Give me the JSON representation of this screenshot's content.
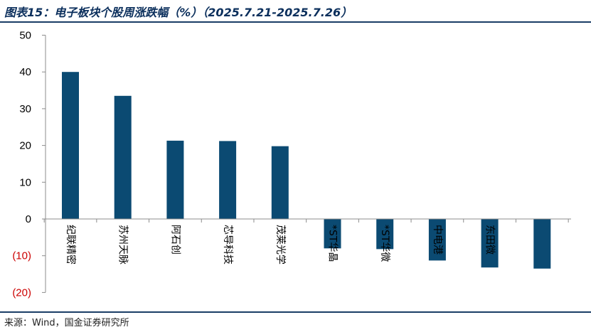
{
  "page": {
    "title": "图表15：电子板块个股周涨跌幅（%）（2025.7.21-2025.7.26）",
    "source": "来源：Wind，国金证券研究所"
  },
  "colors": {
    "bar": "#0b4a72",
    "axis": "#8c8c8c",
    "negative_tick": "#cc0000",
    "text": "#000000"
  },
  "chart_data": {
    "type": "bar",
    "categories": [
      "纪联精密",
      "苏州天脉",
      "阿石创",
      "芯导科技",
      "茂莱光学",
      "*ST华晶",
      "*ST华微",
      "中电港",
      "东田微",
      ""
    ],
    "values": [
      40.0,
      33.5,
      21.3,
      21.2,
      19.8,
      -8.0,
      -8.2,
      -11.3,
      -13.2,
      -13.5
    ],
    "ylim": [
      -20,
      50
    ],
    "yticks": [
      50,
      40,
      30,
      20,
      10,
      0,
      -10,
      -20
    ],
    "ytick_labels": [
      "50",
      "40",
      "30",
      "20",
      "10",
      "0",
      "(10)",
      "(20)"
    ],
    "grid": false,
    "xlabel": "",
    "ylabel": ""
  }
}
